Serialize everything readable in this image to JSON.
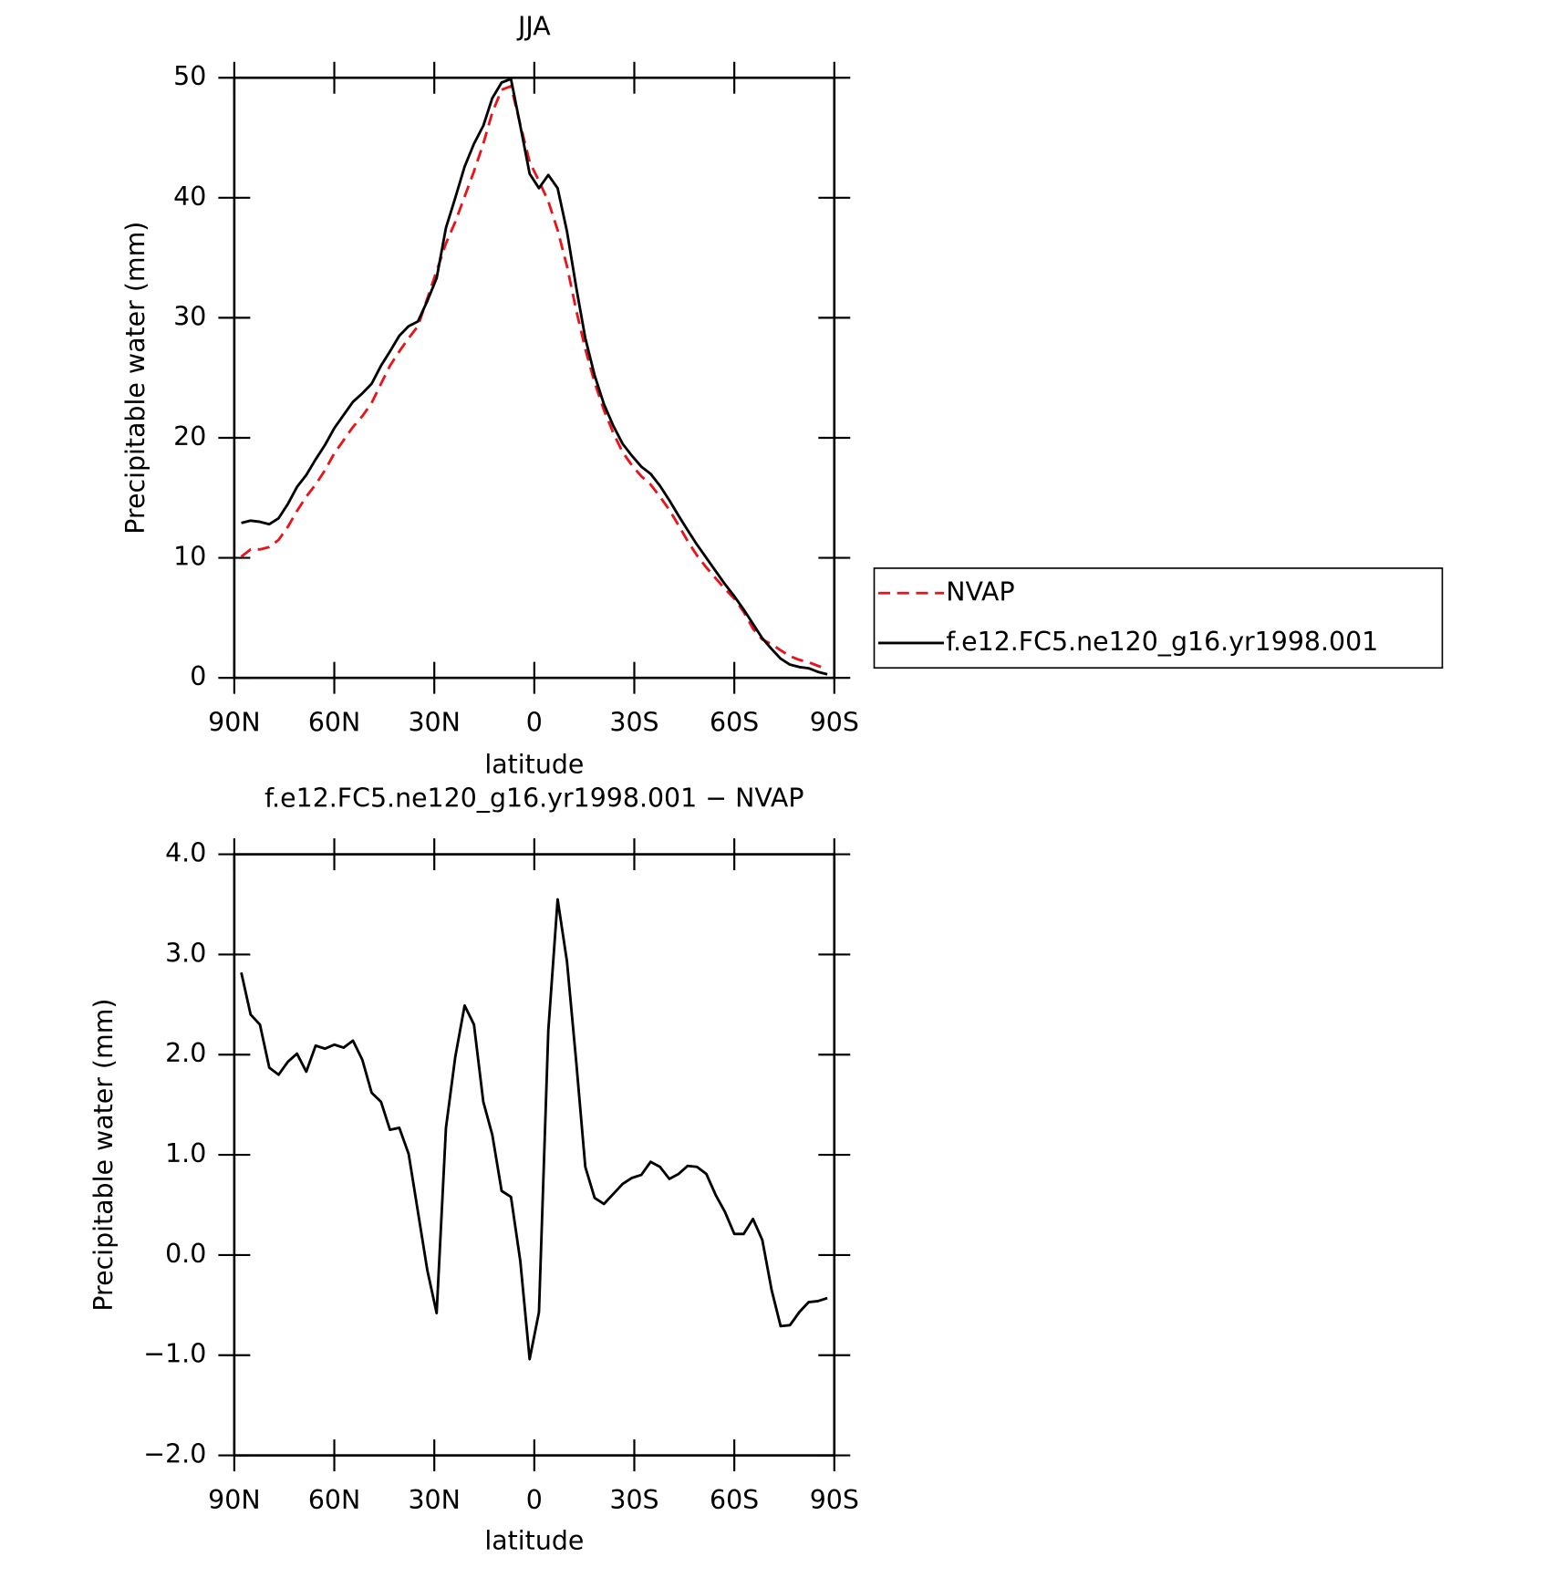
{
  "chart_data": [
    {
      "type": "line",
      "title": "JJA",
      "y_label": "Precipitable water (mm)",
      "x_label": "latitude",
      "x": [
        87.9,
        85.1,
        82.3,
        79.5,
        76.7,
        73.9,
        71.2,
        68.4,
        65.6,
        62.8,
        60.0,
        57.2,
        54.4,
        51.6,
        48.8,
        46.0,
        43.3,
        40.5,
        37.7,
        34.9,
        32.1,
        29.3,
        26.5,
        23.7,
        20.9,
        18.1,
        15.3,
        12.6,
        9.8,
        7.0,
        4.2,
        1.4,
        -1.4,
        -4.2,
        -7.0,
        -9.8,
        -12.6,
        -15.3,
        -18.1,
        -20.9,
        -23.7,
        -26.5,
        -29.3,
        -32.1,
        -34.9,
        -37.7,
        -40.5,
        -43.3,
        -46.0,
        -48.8,
        -51.6,
        -54.4,
        -57.2,
        -60.0,
        -62.8,
        -65.6,
        -68.4,
        -71.2,
        -73.9,
        -76.7,
        -79.5,
        -82.3,
        -85.1,
        -87.9
      ],
      "series": [
        {
          "name": "NVAP",
          "color": "#e8141a",
          "dashed": true,
          "values": [
            10.1,
            10.7,
            10.7,
            10.9,
            11.5,
            12.6,
            13.9,
            15.1,
            16.1,
            17.3,
            18.7,
            19.8,
            20.9,
            21.8,
            22.9,
            24.5,
            26.0,
            27.2,
            28.3,
            29.3,
            31.6,
            33.9,
            36.2,
            38.0,
            40.1,
            42.2,
            44.5,
            47.1,
            49.0,
            49.3,
            46.1,
            43.0,
            41.4,
            39.7,
            37.3,
            34.3,
            30.6,
            27.4,
            24.6,
            22.3,
            20.4,
            18.8,
            17.7,
            16.8,
            16.1,
            15.1,
            14.0,
            12.7,
            11.4,
            10.2,
            9.2,
            8.3,
            7.4,
            6.6,
            5.5,
            4.1,
            3.2,
            2.8,
            2.3,
            1.8,
            1.5,
            1.3,
            1.0,
            0.7
          ]
        },
        {
          "name": "f.e12.FC5.ne120_g16.yr1998.001",
          "color": "#000000",
          "dashed": false,
          "values": [
            12.9,
            13.1,
            13.0,
            12.8,
            13.3,
            14.5,
            15.9,
            16.9,
            18.2,
            19.4,
            20.8,
            21.9,
            23.0,
            23.7,
            24.5,
            26.0,
            27.2,
            28.5,
            29.3,
            29.7,
            31.4,
            33.3,
            37.5,
            40.0,
            42.6,
            44.5,
            46.0,
            48.3,
            49.6,
            49.9,
            46.0,
            42.0,
            40.8,
            41.9,
            40.8,
            37.2,
            32.5,
            28.3,
            25.2,
            22.8,
            21.0,
            19.5,
            18.5,
            17.6,
            17.0,
            16.0,
            14.8,
            13.5,
            12.3,
            11.1,
            10.0,
            8.9,
            7.8,
            6.8,
            5.7,
            4.5,
            3.3,
            2.4,
            1.6,
            1.1,
            0.9,
            0.8,
            0.5,
            0.3
          ]
        }
      ],
      "xlim": [
        90,
        -90
      ],
      "xticks": [
        {
          "value": 90,
          "label": "90N"
        },
        {
          "value": 60,
          "label": "60N"
        },
        {
          "value": 30,
          "label": "30N"
        },
        0,
        {
          "value": -30,
          "label": "30S"
        },
        {
          "value": -60,
          "label": "60S"
        },
        {
          "value": -90,
          "label": "90S"
        }
      ],
      "ylim": [
        0,
        50
      ],
      "yticks": [
        0,
        10,
        20,
        30,
        40,
        50
      ],
      "legend": "right"
    },
    {
      "type": "line",
      "title": "f.e12.FC5.ne120_g16.yr1998.001 − NVAP",
      "y_label": "Precipitable water (mm)",
      "x_label": "latitude",
      "x": [
        87.9,
        85.1,
        82.3,
        79.5,
        76.7,
        73.9,
        71.2,
        68.4,
        65.6,
        62.8,
        60.0,
        57.2,
        54.4,
        51.6,
        48.8,
        46.0,
        43.3,
        40.5,
        37.7,
        34.9,
        32.1,
        29.3,
        26.5,
        23.7,
        20.9,
        18.1,
        15.3,
        12.6,
        9.8,
        7.0,
        4.2,
        1.4,
        -1.4,
        -4.2,
        -7.0,
        -9.8,
        -12.6,
        -15.3,
        -18.1,
        -20.9,
        -23.7,
        -26.5,
        -29.3,
        -32.1,
        -34.9,
        -37.7,
        -40.5,
        -43.3,
        -46.0,
        -48.8,
        -51.6,
        -54.4,
        -57.2,
        -60.0,
        -62.8,
        -65.6,
        -68.4,
        -71.2,
        -73.9,
        -76.7,
        -79.5,
        -82.3,
        -85.1,
        -87.9
      ],
      "series": [
        {
          "color": "#000000",
          "dashed": false,
          "values": [
            2.82,
            2.4,
            2.3,
            1.87,
            1.8,
            1.93,
            2.01,
            1.83,
            2.09,
            2.06,
            2.1,
            2.07,
            2.14,
            1.95,
            1.62,
            1.53,
            1.25,
            1.27,
            1.01,
            0.43,
            -0.15,
            -0.58,
            1.27,
            1.98,
            2.49,
            2.3,
            1.53,
            1.2,
            0.64,
            0.58,
            -0.06,
            -1.04,
            -0.57,
            2.24,
            3.55,
            2.93,
            1.92,
            0.88,
            0.57,
            0.51,
            0.61,
            0.71,
            0.77,
            0.8,
            0.93,
            0.88,
            0.76,
            0.81,
            0.89,
            0.88,
            0.81,
            0.6,
            0.43,
            0.21,
            0.21,
            0.36,
            0.15,
            -0.35,
            -0.71,
            -0.7,
            -0.57,
            -0.47,
            -0.46,
            -0.43
          ]
        }
      ],
      "xlim": [
        90,
        -90
      ],
      "xticks": [
        {
          "value": 90,
          "label": "90N"
        },
        {
          "value": 60,
          "label": "60N"
        },
        {
          "value": 30,
          "label": "30N"
        },
        0,
        {
          "value": -30,
          "label": "30S"
        },
        {
          "value": -60,
          "label": "60S"
        },
        {
          "value": -90,
          "label": "90S"
        }
      ],
      "ylim": [
        -2,
        4
      ],
      "yticks": [
        {
          "value": -2,
          "label": "−2.0"
        },
        {
          "value": -1,
          "label": "−1.0"
        },
        {
          "value": 0,
          "label": "0.0"
        },
        {
          "value": 1,
          "label": "1.0"
        },
        {
          "value": 2,
          "label": "2.0"
        },
        {
          "value": 3,
          "label": "3.0"
        },
        {
          "value": 4,
          "label": "4.0"
        }
      ]
    }
  ]
}
